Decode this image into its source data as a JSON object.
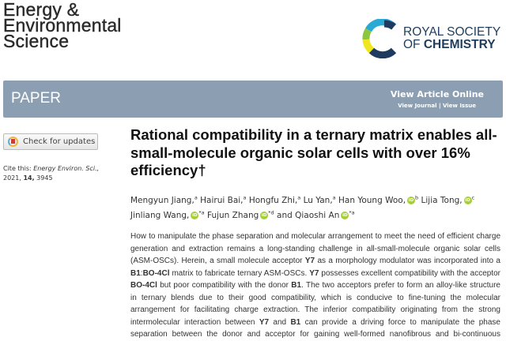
{
  "journal": {
    "lines": [
      "Energy &",
      "Environmental",
      "Science"
    ]
  },
  "publisher": {
    "line1": "ROYAL SOCIETY",
    "line2_prefix": "OF ",
    "line2_bold": "CHEMISTRY",
    "logo_colors": [
      "#1e3a5f",
      "#29a9d6",
      "#8dc63f",
      "#f0e61c"
    ]
  },
  "banner": {
    "type": "PAPER",
    "view_article": "View Article Online",
    "view_journal": "View Journal",
    "separator": " | ",
    "view_issue": "View Issue",
    "color": "#8c9fb2"
  },
  "check_updates": "Check for updates",
  "cite": {
    "label": "Cite this:",
    "journal": "Energy Environ. Sci.,",
    "year": "2021,",
    "volume": "14,",
    "page": "3945"
  },
  "title": "Rational compatibility in a ternary matrix enables all-small-molecule organic solar cells with over 16% efficiency†",
  "authors": [
    {
      "name": "Mengyun Jiang,",
      "sup": "a"
    },
    {
      "name": "Hairui Bai,",
      "sup": "a"
    },
    {
      "name": "Hongfu Zhi,",
      "sup": "a"
    },
    {
      "name": "Lu Yan,",
      "sup": "a"
    },
    {
      "name": "Han Young Woo,",
      "orcid": true,
      "sup": "b"
    },
    {
      "name": "Lijia Tong,",
      "orcid": true,
      "sup": "c"
    },
    {
      "name": "Jinliang Wang,",
      "orcid": true,
      "sup": "*a"
    },
    {
      "name": "Fujun Zhang",
      "orcid": true,
      "sup": "*d"
    },
    {
      "name": "and Qiaoshi An",
      "orcid": true,
      "sup": "*a"
    }
  ],
  "orcid_label": "iD",
  "abstract": [
    [
      {
        "t": "How to manipulate the phase separation and molecular arrangement to meet the need of efficient charge"
      }
    ],
    [
      {
        "t": "generation and extraction remains a long-standing challenge in all-small-molecule organic solar cells"
      }
    ],
    [
      {
        "t": "(ASM-OSCs). Herein, a small molecule acceptor "
      },
      {
        "t": "Y7",
        "b": true
      },
      {
        "t": " as a morphology modulator was incorporated into a"
      }
    ],
    [
      {
        "t": "B1",
        "b": true
      },
      {
        "t": ":"
      },
      {
        "t": "BO-4Cl",
        "b": true
      },
      {
        "t": " matrix to fabricate ternary ASM-OSCs. "
      },
      {
        "t": "Y7",
        "b": true
      },
      {
        "t": " possesses excellent compatibility with the acceptor"
      }
    ],
    [
      {
        "t": "BO-4Cl",
        "b": true
      },
      {
        "t": " but poor compatibility with the donor "
      },
      {
        "t": "B1",
        "b": true
      },
      {
        "t": ". The two acceptors prefer to form an alloy-like structure"
      }
    ],
    [
      {
        "t": "in ternary blends due to their good compatibility, which is conducive to fine-tuning the molecular"
      }
    ],
    [
      {
        "t": "arrangement for facilitating charge extraction. The inferior compatibility originating from the strong"
      }
    ],
    [
      {
        "t": "intermolecular interaction between "
      },
      {
        "t": "Y7",
        "b": true
      },
      {
        "t": " and "
      },
      {
        "t": "B1",
        "b": true
      },
      {
        "t": " can provide a driving force to manipulate the phase"
      }
    ],
    [
      {
        "t": "separation between the donor and acceptor for gaining well-formed nanofibrous and bi-continuous"
      }
    ]
  ]
}
